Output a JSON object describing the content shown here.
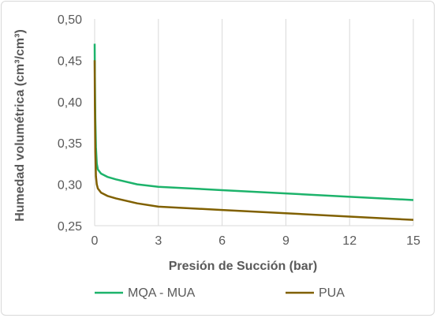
{
  "chart_data": {
    "type": "line",
    "xlabel": "Presión de Succión (bar)",
    "ylabel": "Humedad volumétrica (cm³/cm³)",
    "xlim": [
      0,
      15
    ],
    "ylim": [
      0.25,
      0.5
    ],
    "x_ticks": [
      "0",
      "3",
      "6",
      "9",
      "12",
      "15"
    ],
    "y_ticks": [
      "0,25",
      "0,30",
      "0,35",
      "0,40",
      "0,45",
      "0,50"
    ],
    "grid": "vertical",
    "legend_position": "bottom",
    "series": [
      {
        "name": "MQA - MUA",
        "color": "#1db36b",
        "x": [
          0,
          0.01,
          0.03,
          0.06,
          0.1,
          0.15,
          0.3,
          0.6,
          1,
          2,
          3,
          6,
          9,
          12,
          15
        ],
        "y": [
          0.47,
          0.43,
          0.38,
          0.345,
          0.325,
          0.318,
          0.313,
          0.309,
          0.306,
          0.3,
          0.297,
          0.293,
          0.289,
          0.285,
          0.281
        ]
      },
      {
        "name": "PUA",
        "color": "#806000",
        "x": [
          0,
          0.01,
          0.03,
          0.06,
          0.1,
          0.15,
          0.3,
          0.6,
          1,
          2,
          3,
          6,
          9,
          12,
          15
        ],
        "y": [
          0.45,
          0.4,
          0.34,
          0.31,
          0.3,
          0.295,
          0.29,
          0.286,
          0.283,
          0.277,
          0.273,
          0.269,
          0.265,
          0.261,
          0.257
        ]
      }
    ]
  }
}
